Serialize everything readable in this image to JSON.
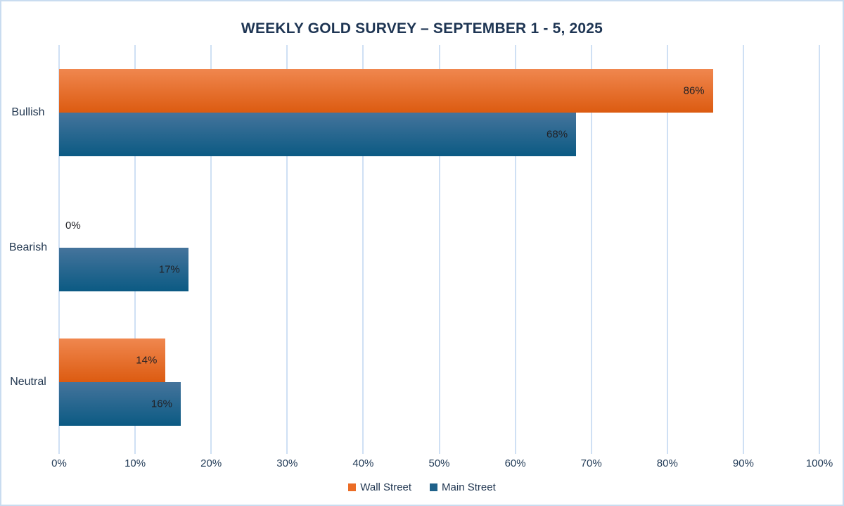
{
  "chart_data": {
    "type": "bar",
    "orientation": "horizontal",
    "title": "WEEKLY GOLD SURVEY – SEPTEMBER 1  - 5, 2025",
    "categories": [
      "Bullish",
      "Bearish",
      "Neutral"
    ],
    "series": [
      {
        "name": "Wall Street",
        "values": [
          86,
          0,
          14
        ],
        "labels": [
          "86%",
          "0%",
          "14%"
        ]
      },
      {
        "name": "Main Street",
        "values": [
          68,
          17,
          16
        ],
        "labels": [
          "68%",
          "17%",
          "16%"
        ]
      }
    ],
    "xlim": [
      0,
      100
    ],
    "x_ticks": [
      "0%",
      "10%",
      "20%",
      "30%",
      "40%",
      "50%",
      "60%",
      "70%",
      "80%",
      "90%",
      "100%"
    ],
    "grid": "vertical-only",
    "value_labels": "inside-end",
    "legend_position": "bottom-center"
  },
  "colors": {
    "background": "#FFFFFF",
    "frame_border": "#C9DCF0",
    "gridline": "#CFE0F4",
    "title_text": "#1E3553",
    "category_text": "#223750",
    "axis_tick_text": "#223B57",
    "value_text": "#212126",
    "series": [
      {
        "name": "Wall Street",
        "gradient_top": "#F0874F",
        "gradient_bottom": "#DC5B11",
        "legend_swatch": "#EB6C25"
      },
      {
        "name": "Main Street",
        "gradient_top": "#45749C",
        "gradient_bottom": "#0B5A83",
        "legend_swatch": "#1F618A"
      }
    ],
    "legend_text": "#1F3550"
  }
}
